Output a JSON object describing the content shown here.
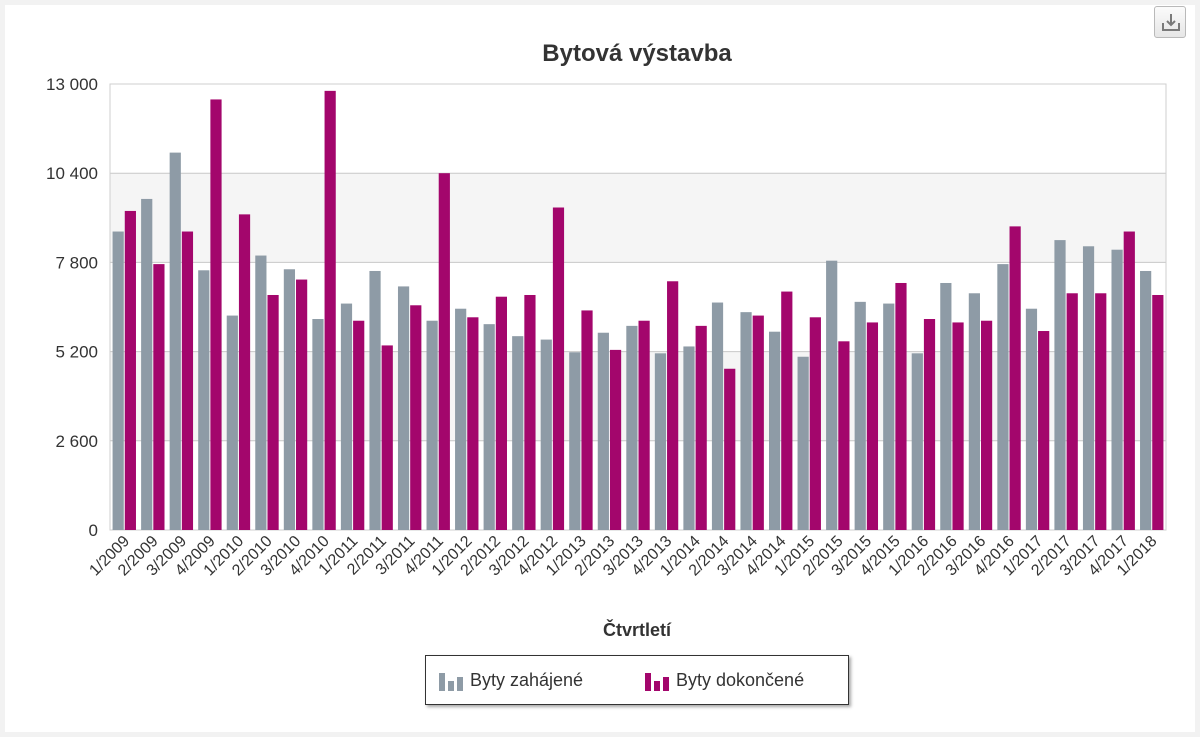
{
  "chart_data": {
    "type": "bar",
    "title": "Bytová výstavba",
    "xlabel": "Čtvrtletí",
    "ylabel": "",
    "ylim": [
      0,
      13000
    ],
    "yticks": [
      0,
      2600,
      5200,
      7800,
      10400,
      13000
    ],
    "ytick_labels": [
      "0",
      "2 600",
      "5 200",
      "7 800",
      "10 400",
      "13 000"
    ],
    "grid": true,
    "legend_position": "bottom-center",
    "categories": [
      "1/2009",
      "2/2009",
      "3/2009",
      "4/2009",
      "1/2010",
      "2/2010",
      "3/2010",
      "4/2010",
      "1/2011",
      "2/2011",
      "3/2011",
      "4/2011",
      "1/2012",
      "2/2012",
      "3/2012",
      "4/2012",
      "1/2013",
      "2/2013",
      "3/2013",
      "4/2013",
      "1/2014",
      "2/2014",
      "3/2014",
      "4/2014",
      "1/2015",
      "2/2015",
      "3/2015",
      "4/2015",
      "1/2016",
      "2/2016",
      "3/2016",
      "4/2016",
      "1/2017",
      "2/2017",
      "3/2017",
      "4/2017",
      "1/2018"
    ],
    "series": [
      {
        "name": "Byty zahájené",
        "color": "#8e9ba6",
        "values": [
          8700,
          9650,
          11000,
          7570,
          6250,
          8000,
          7600,
          6150,
          6600,
          7550,
          7100,
          6100,
          6450,
          6000,
          5650,
          5550,
          5180,
          5750,
          5950,
          5150,
          5350,
          6630,
          6350,
          5780,
          5050,
          7850,
          6650,
          6600,
          5150,
          7200,
          6900,
          7750,
          6450,
          8450,
          8270,
          8170,
          7550
        ]
      },
      {
        "name": "Byty dokončené",
        "color": "#a3066c",
        "values": [
          9300,
          7750,
          8700,
          12550,
          9200,
          6850,
          7300,
          12800,
          6100,
          5380,
          6550,
          10400,
          6200,
          6800,
          6850,
          9400,
          6400,
          5250,
          6100,
          7250,
          5950,
          4700,
          6250,
          6950,
          6200,
          5500,
          6050,
          7200,
          6150,
          6050,
          6100,
          8850,
          5800,
          6900,
          6900,
          8700,
          6850
        ]
      }
    ]
  },
  "toolbar": {
    "download_icon": "download-icon"
  }
}
